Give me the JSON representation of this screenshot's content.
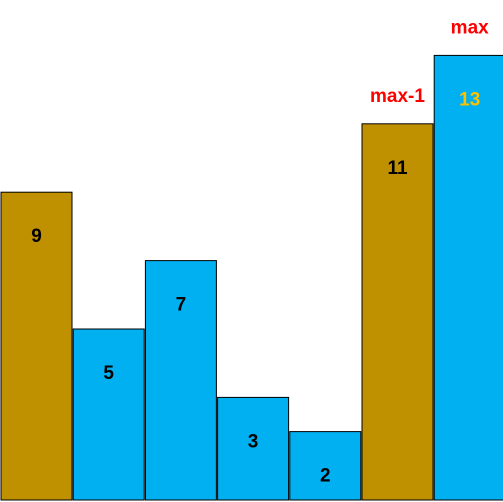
{
  "chart_data": {
    "type": "bar",
    "values": [
      9,
      5,
      7,
      3,
      2,
      11,
      13
    ],
    "value_labels": [
      "9",
      "5",
      "7",
      "3",
      "2",
      "11",
      "13"
    ],
    "bar_colors": [
      "#BF9000",
      "#00B0F0",
      "#00B0F0",
      "#00B0F0",
      "#00B0F0",
      "#BF9000",
      "#00B0F0"
    ],
    "label_colors": [
      "#000000",
      "#000000",
      "#000000",
      "#000000",
      "#000000",
      "#000000",
      "#FFC000"
    ],
    "ylim": [
      0,
      13
    ],
    "grid": false,
    "annotations": [
      {
        "bar_index": 5,
        "text": "max-1",
        "color": "#FF0000"
      },
      {
        "bar_index": 6,
        "text": "max",
        "color": "#FF0000"
      }
    ]
  }
}
